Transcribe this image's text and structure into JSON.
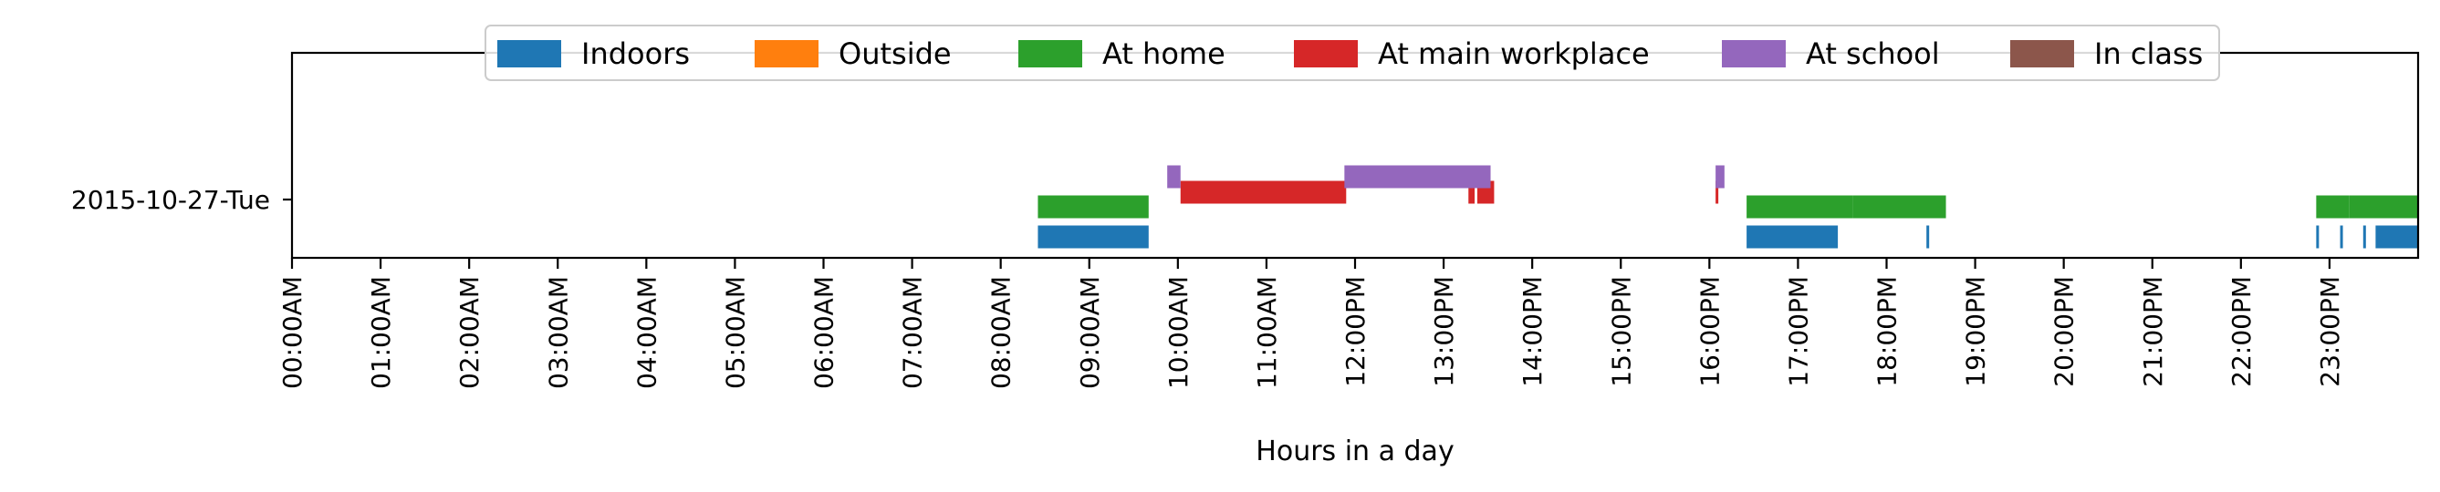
{
  "chart_data": {
    "type": "timeline",
    "xlabel": "Hours in a day",
    "ylabel": "",
    "xlim": [
      0,
      24
    ],
    "x_ticks": [
      "00:00AM",
      "01:00AM",
      "02:00AM",
      "03:00AM",
      "04:00AM",
      "05:00AM",
      "06:00AM",
      "07:00AM",
      "08:00AM",
      "09:00AM",
      "10:00AM",
      "11:00AM",
      "12:00PM",
      "13:00PM",
      "14:00PM",
      "15:00PM",
      "16:00PM",
      "17:00PM",
      "18:00PM",
      "19:00PM",
      "20:00PM",
      "21:00PM",
      "22:00PM",
      "23:00PM"
    ],
    "y_categories": [
      "2015-10-27-Tue"
    ],
    "legend_placement": "top-center",
    "grid": false,
    "series": [
      {
        "name": "Indoors",
        "color": "#1f77b4",
        "lane": 1,
        "intervals": [
          [
            8.42,
            9.67
          ],
          [
            16.42,
            17.45
          ],
          [
            18.45,
            18.48
          ],
          [
            22.85,
            22.88
          ],
          [
            23.12,
            23.15
          ],
          [
            23.38,
            23.41
          ],
          [
            23.52,
            24.0
          ]
        ]
      },
      {
        "name": "Outside",
        "color": "#ff7f0e",
        "lane": 2,
        "intervals": []
      },
      {
        "name": "At home",
        "color": "#2ca02c",
        "lane": 3,
        "intervals": [
          [
            8.42,
            9.67
          ],
          [
            16.42,
            17.62
          ],
          [
            17.62,
            18.67
          ],
          [
            22.85,
            23.22
          ],
          [
            23.22,
            24.0
          ]
        ]
      },
      {
        "name": "At main workplace",
        "color": "#d62728",
        "lane": 4,
        "intervals": [
          [
            10.03,
            11.9
          ],
          [
            13.28,
            13.35
          ],
          [
            13.38,
            13.57
          ],
          [
            16.07,
            16.1
          ]
        ]
      },
      {
        "name": "At school",
        "color": "#9467bd",
        "lane": 5,
        "intervals": [
          [
            9.88,
            10.03
          ],
          [
            11.88,
            13.53
          ],
          [
            16.07,
            16.17
          ]
        ]
      },
      {
        "name": "In class",
        "color": "#8c564b",
        "lane": 6,
        "intervals": []
      }
    ]
  }
}
